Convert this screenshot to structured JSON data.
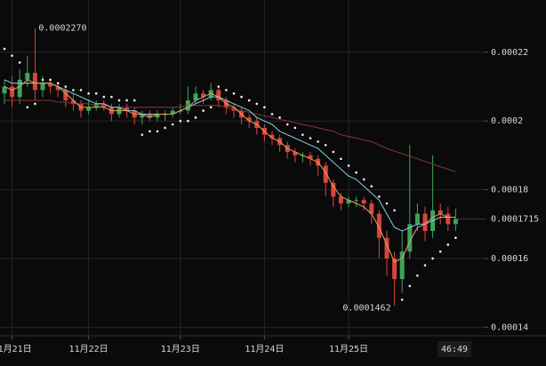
{
  "chart_data": {
    "type": "candlestick",
    "categories": [
      null,
      "11月21日",
      null,
      null,
      null,
      null,
      null,
      null,
      null,
      null,
      null,
      "11月22日",
      null,
      null,
      null,
      null,
      null,
      null,
      null,
      null,
      null,
      null,
      null,
      "11月23日",
      null,
      null,
      null,
      null,
      null,
      null,
      null,
      null,
      null,
      null,
      "11月24日",
      null,
      null,
      null,
      null,
      null,
      null,
      null,
      null,
      null,
      null,
      "11月25日",
      null,
      null,
      null,
      null,
      null,
      null,
      null,
      null,
      null,
      null,
      null,
      null,
      null,
      null
    ],
    "open": [
      0.000208,
      0.00021,
      0.000207,
      0.000212,
      0.000214,
      0.000209,
      0.000211,
      0.00021,
      0.000209,
      0.000206,
      0.000205,
      0.000203,
      0.000204,
      0.000205,
      0.000204,
      0.000202,
      0.000204,
      0.000203,
      0.000201,
      0.000202,
      0.000201,
      0.000202,
      0.000202,
      0.000203,
      0.000203,
      0.000206,
      0.000208,
      0.000207,
      0.000209,
      0.000206,
      0.000204,
      0.000203,
      0.000201,
      0.0002,
      0.000198,
      0.000196,
      0.000195,
      0.000193,
      0.000191,
      0.00019,
      0.00019,
      0.000189,
      0.000187,
      0.000182,
      0.000178,
      0.000176,
      0.000177,
      0.000177,
      0.000176,
      0.000173,
      0.000166,
      0.00016,
      0.000154,
      0.000162,
      0.00017,
      0.000173,
      0.000168,
      0.000174,
      0.000173,
      0.00017
    ],
    "high": [
      0.000212,
      0.000213,
      0.000215,
      0.000219,
      0.000227,
      0.000213,
      0.000212,
      0.000211,
      0.00021,
      0.000208,
      0.000206,
      0.000206,
      0.000206,
      0.000206,
      0.000205,
      0.000205,
      0.000205,
      0.000204,
      0.000203,
      0.000203,
      0.000203,
      0.000203,
      0.000204,
      0.000205,
      0.00021,
      0.00021,
      0.000209,
      0.000211,
      0.00021,
      0.000207,
      0.000205,
      0.000204,
      0.000202,
      0.000201,
      0.000199,
      0.000197,
      0.000196,
      0.000194,
      0.000192,
      0.000191,
      0.000191,
      0.00019,
      0.000188,
      0.000183,
      0.000179,
      0.000178,
      0.000178,
      0.000178,
      0.000177,
      0.000174,
      0.000168,
      0.000162,
      0.000168,
      0.000193,
      0.000176,
      0.000175,
      0.00019,
      0.000176,
      0.000175,
      0.0001745
    ],
    "low": [
      0.000205,
      0.000204,
      0.000205,
      0.00021,
      0.000206,
      0.000207,
      0.000208,
      0.000207,
      0.000204,
      0.000203,
      0.000201,
      0.000202,
      0.000203,
      0.000203,
      0.0002,
      0.000201,
      0.000201,
      0.000199,
      0.000199,
      0.0002,
      0.0002,
      0.0002,
      0.000201,
      0.000202,
      0.000202,
      0.000205,
      0.000205,
      0.000206,
      0.000204,
      0.000202,
      0.000201,
      0.000199,
      0.000198,
      0.000196,
      0.000194,
      0.000193,
      0.000191,
      0.000189,
      0.000188,
      0.000188,
      0.000187,
      0.000184,
      0.000178,
      0.000175,
      0.000174,
      0.000175,
      0.000175,
      0.000174,
      0.00017,
      0.00016,
      0.000155,
      0.0001462,
      0.00015,
      0.00016,
      0.000168,
      0.000165,
      0.000166,
      0.00017,
      0.000168,
      0.000168
    ],
    "close": [
      0.00021,
      0.000207,
      0.000212,
      0.000214,
      0.000209,
      0.000211,
      0.00021,
      0.000209,
      0.000206,
      0.000205,
      0.000203,
      0.000204,
      0.000205,
      0.000204,
      0.000202,
      0.000204,
      0.000203,
      0.000201,
      0.000202,
      0.000201,
      0.000202,
      0.000202,
      0.000203,
      0.000203,
      0.000206,
      0.000208,
      0.000207,
      0.000209,
      0.000206,
      0.000204,
      0.000203,
      0.000201,
      0.0002,
      0.000198,
      0.000196,
      0.000195,
      0.000193,
      0.000191,
      0.00019,
      0.00019,
      0.000189,
      0.000187,
      0.000182,
      0.000178,
      0.000176,
      0.000177,
      0.000177,
      0.000176,
      0.000173,
      0.000166,
      0.00016,
      0.000154,
      0.000162,
      0.00017,
      0.000173,
      0.000168,
      0.000174,
      0.000173,
      0.00017,
      0.0001715
    ],
    "up_color": "#3fa35a",
    "down_color": "#d8453d",
    "series": [
      {
        "color": "#8a3434",
        "style": "line",
        "values": [
          0.000206,
          0.000206,
          0.000206,
          0.000206,
          0.000206,
          0.000206,
          0.000206,
          0.0002055,
          0.0002055,
          0.000205,
          0.000205,
          0.000205,
          0.0002045,
          0.0002045,
          0.000204,
          0.000204,
          0.000204,
          0.000204,
          0.000204,
          0.000204,
          0.000204,
          0.000204,
          0.000204,
          0.000204,
          0.0002045,
          0.0002045,
          0.0002045,
          0.0002045,
          0.0002045,
          0.000204,
          0.0002035,
          0.000203,
          0.0002025,
          0.000202,
          0.0002015,
          0.000201,
          0.0002005,
          0.0002,
          0.0001995,
          0.000199,
          0.0001985,
          0.000198,
          0.0001975,
          0.000197,
          0.000196,
          0.0001955,
          0.000195,
          0.0001945,
          0.000194,
          0.000193,
          0.000192,
          0.0001912,
          0.0001905,
          0.0001897,
          0.000189,
          0.0001882,
          0.0001875,
          0.0001867,
          0.000186,
          0.0001852
        ]
      },
      {
        "color": "#7fd3e6",
        "style": "line",
        "values": [
          0.000212,
          0.000211,
          0.000211,
          0.000211,
          0.000211,
          0.000211,
          0.000211,
          0.00021,
          0.000209,
          0.000208,
          0.000207,
          0.000206,
          0.000205,
          0.000205,
          0.000204,
          0.000204,
          0.000203,
          0.000203,
          0.000202,
          0.000202,
          0.000202,
          0.000202,
          0.000202,
          0.000203,
          0.000204,
          0.000205,
          0.000206,
          0.000207,
          0.000207,
          0.000206,
          0.000205,
          0.000204,
          0.000203,
          0.000201,
          0.0002,
          0.000199,
          0.000197,
          0.000196,
          0.000195,
          0.000194,
          0.000193,
          0.000192,
          0.00019,
          0.000188,
          0.000186,
          0.000184,
          0.000183,
          0.000181,
          0.000179,
          0.000177,
          0.000173,
          0.000169,
          0.000168,
          0.000169,
          0.00017,
          0.00017,
          0.000171,
          0.000172,
          0.000172,
          0.000172
        ]
      },
      {
        "color": "#e6a15c",
        "style": "line",
        "values": [
          0.00021,
          0.000209,
          0.00021,
          0.000212,
          0.000211,
          0.000211,
          0.000211,
          0.00021,
          0.000208,
          0.000206,
          0.000204,
          0.000204,
          0.000204,
          0.000204,
          0.000203,
          0.000203,
          0.000203,
          0.000202,
          0.000202,
          0.000201,
          0.000202,
          0.000202,
          0.000202,
          0.000203,
          0.000204,
          0.000206,
          0.000207,
          0.000208,
          0.000207,
          0.000205,
          0.000204,
          0.000202,
          0.0002,
          0.000199,
          0.000197,
          0.000195,
          0.000194,
          0.000192,
          0.000191,
          0.00019,
          0.000189,
          0.000188,
          0.000185,
          0.000181,
          0.000178,
          0.000177,
          0.000176,
          0.000175,
          0.000173,
          0.000169,
          0.000164,
          0.000159,
          0.00016,
          0.000165,
          0.000169,
          0.00017,
          0.000172,
          0.000173,
          0.000172,
          0.000172
        ]
      },
      {
        "color": "#f0f0f0",
        "style": "dots",
        "values": [
          0.000221,
          0.000219,
          0.000217,
          0.000204,
          0.000205,
          0.000212,
          0.000212,
          0.000211,
          0.00021,
          0.000209,
          0.000209,
          0.000208,
          0.000208,
          0.000207,
          0.000207,
          0.000206,
          0.000206,
          0.000206,
          0.000196,
          0.000197,
          0.000197,
          0.000198,
          0.000199,
          0.0002,
          0.0002,
          0.000201,
          0.000203,
          0.000204,
          0.00021,
          0.000209,
          0.000208,
          0.000207,
          0.000206,
          0.000205,
          0.000204,
          0.000202,
          0.000201,
          0.000199,
          0.000198,
          0.000196,
          0.000195,
          0.000194,
          0.000193,
          0.000191,
          0.000189,
          0.000187,
          0.000185,
          0.000183,
          0.000181,
          0.000178,
          0.000176,
          0.000174,
          0.000148,
          0.000152,
          0.000155,
          0.000158,
          0.00016,
          0.000162,
          0.000164,
          0.000166
        ]
      }
    ],
    "ylim": [
      0.0001375,
      0.0002352
    ],
    "yticks": [
      0.00014,
      0.00016,
      0.00018,
      0.0002,
      0.00022
    ],
    "grid": true,
    "high_label": {
      "value": 0.000227,
      "label": "0.0002270"
    },
    "low_label": 0.0001462,
    "last_price": 0.0001715,
    "countdown": "46:49"
  }
}
